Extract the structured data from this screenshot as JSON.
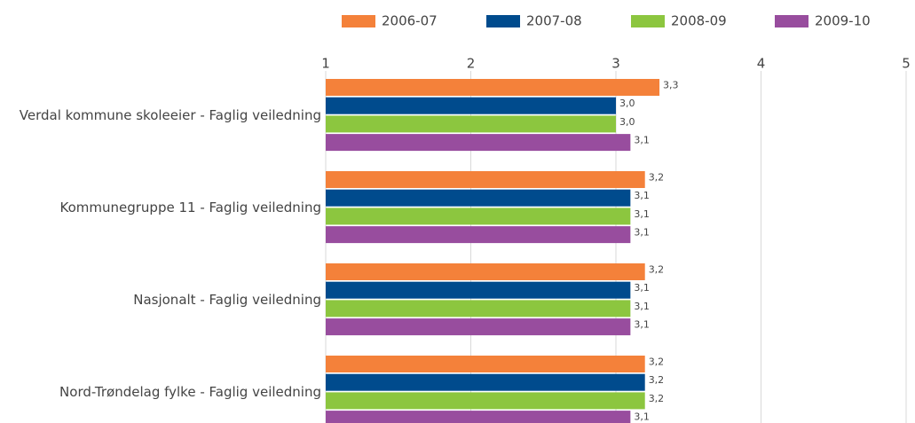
{
  "chart_data": {
    "type": "barh",
    "categories": [
      "Verdal kommune skoleeier - Faglig veiledning",
      "Kommunegruppe 11 - Faglig veiledning",
      "Nasjonalt - Faglig veiledning",
      "Nord-Trøndelag fylke - Faglig veiledning"
    ],
    "series": [
      {
        "name": "2006-07",
        "color": "#f4813a",
        "values": [
          3.3,
          3.2,
          3.2,
          3.2
        ],
        "value_labels": [
          "3,3",
          "3,2",
          "3,2",
          "3,2"
        ]
      },
      {
        "name": "2007-08",
        "color": "#004b8d",
        "values": [
          3.0,
          3.1,
          3.1,
          3.2
        ],
        "value_labels": [
          "3,0",
          "3,1",
          "3,1",
          "3,2"
        ]
      },
      {
        "name": "2008-09",
        "color": "#8cc63f",
        "values": [
          3.0,
          3.1,
          3.1,
          3.2
        ],
        "value_labels": [
          "3,0",
          "3,1",
          "3,1",
          "3,2"
        ]
      },
      {
        "name": "2009-10",
        "color": "#984d9e",
        "values": [
          3.1,
          3.1,
          3.1,
          3.1
        ],
        "value_labels": [
          "3,1",
          "3,1",
          "3,1",
          "3,1"
        ]
      }
    ],
    "xlim": [
      1,
      5
    ],
    "xticks": [
      1,
      2,
      3,
      4,
      5
    ],
    "grid": true,
    "legend": "top"
  }
}
